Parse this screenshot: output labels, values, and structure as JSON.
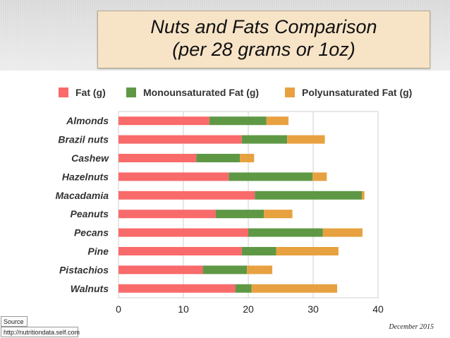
{
  "header": {
    "title_line1": "Nuts and Fats Comparison",
    "title_line2": "(per 28 grams or 1oz)"
  },
  "legend": {
    "fat": "Fat (g)",
    "mono": "Monounsaturated Fat (g)",
    "poly": "Polyunsaturated Fat (g)"
  },
  "colors": {
    "fat": "#f96a6a",
    "mono": "#5f9845",
    "poly": "#e8a140",
    "title_bg": "#f7e3c6"
  },
  "footer": {
    "source_label": "Source",
    "source_url": "http://nutritiondata.self.com",
    "date": "December 2015"
  },
  "chart_data": {
    "type": "bar",
    "orientation": "horizontal",
    "stacked": true,
    "title": "Nuts and Fats Comparison (per 28 grams or 1oz)",
    "xlabel": "",
    "ylabel": "",
    "xlim": [
      0,
      40
    ],
    "xticks": [
      0,
      10,
      20,
      30,
      40
    ],
    "grid": true,
    "legend_position": "top",
    "categories": [
      "Almonds",
      "Brazil nuts",
      "Cashew",
      "Hazelnuts",
      "Macadamia",
      "Peanuts",
      "Pecans",
      "Pine",
      "Pistachios",
      "Walnuts"
    ],
    "series": [
      {
        "name": "Fat (g)",
        "values": [
          14,
          19,
          12,
          17,
          21,
          15,
          20,
          19,
          13,
          18
        ]
      },
      {
        "name": "Monounsaturated Fat (g)",
        "values": [
          8.8,
          7,
          6.7,
          12.9,
          16.5,
          7.4,
          11.5,
          5.3,
          6.8,
          2.5
        ]
      },
      {
        "name": "Polyunsaturated Fat (g)",
        "values": [
          3.4,
          5.8,
          2.2,
          2.2,
          0.4,
          4.4,
          6.1,
          9.6,
          3.9,
          13.2
        ]
      }
    ]
  }
}
